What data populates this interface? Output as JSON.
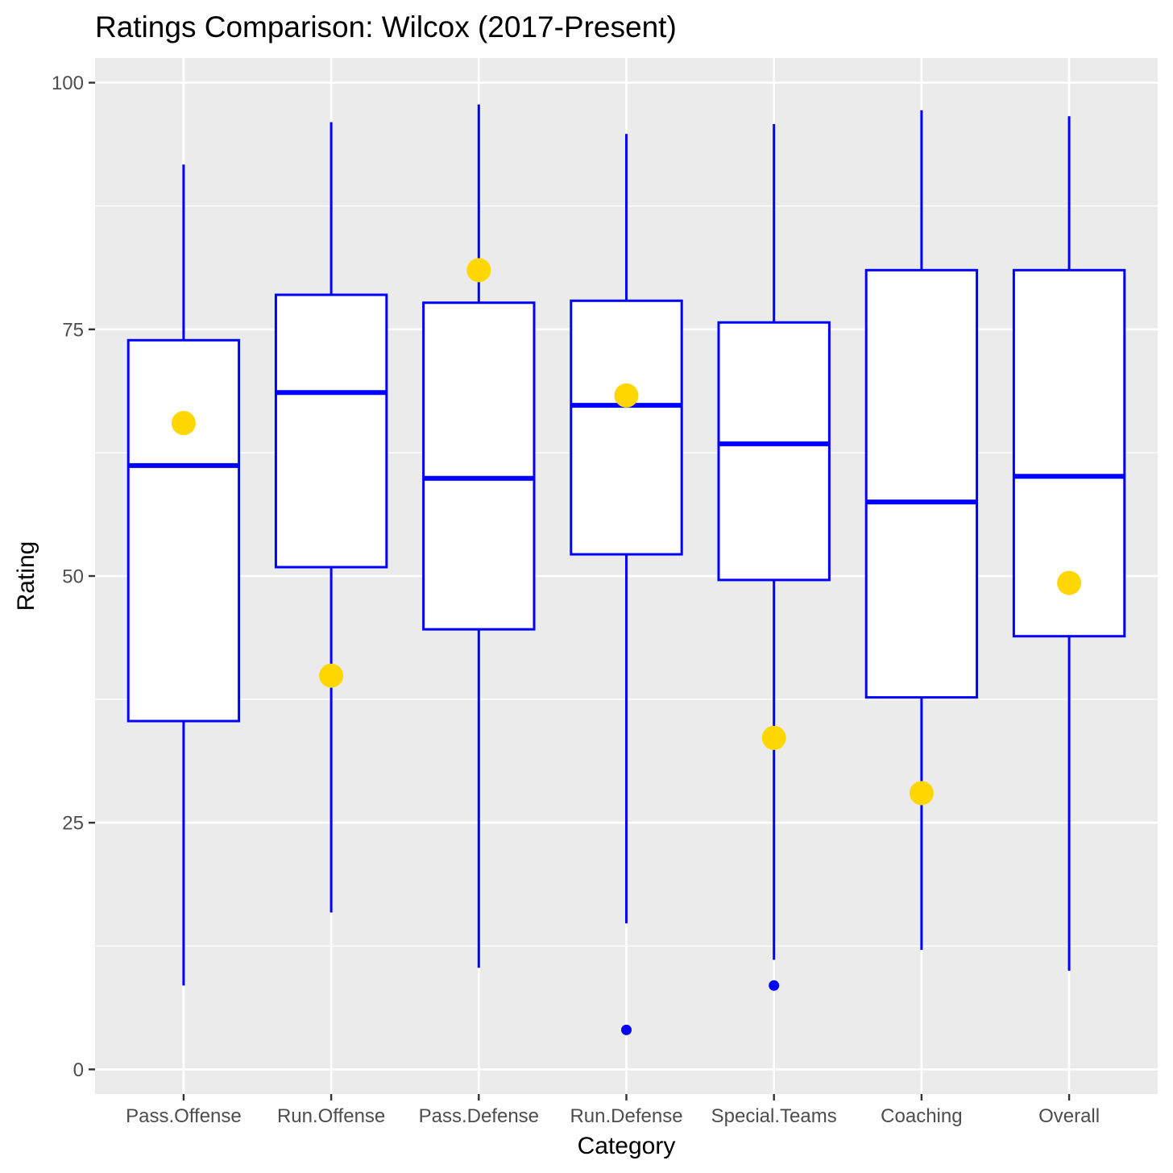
{
  "chart_data": {
    "type": "boxplot",
    "title": "Ratings Comparison: Wilcox (2017-Present)",
    "xlabel": "Category",
    "ylabel": "Rating",
    "ylim": [
      -2.5,
      102.5
    ],
    "yticks": [
      0,
      25,
      50,
      75,
      100
    ],
    "grid": true,
    "categories": [
      "Pass.Offense",
      "Run.Offense",
      "Pass.Defense",
      "Run.Defense",
      "Special.Teams",
      "Coaching",
      "Overall"
    ],
    "boxes": [
      {
        "category": "Pass.Offense",
        "whisker_low": 8.5,
        "q1": 35.3,
        "median": 61.2,
        "q3": 73.9,
        "whisker_high": 91.7,
        "outliers": []
      },
      {
        "category": "Run.Offense",
        "whisker_low": 15.9,
        "q1": 50.9,
        "median": 68.6,
        "q3": 78.5,
        "whisker_high": 96.0,
        "outliers": []
      },
      {
        "category": "Pass.Defense",
        "whisker_low": 10.3,
        "q1": 44.6,
        "median": 59.9,
        "q3": 77.7,
        "whisker_high": 97.8,
        "outliers": []
      },
      {
        "category": "Run.Defense",
        "whisker_low": 14.8,
        "q1": 52.2,
        "median": 67.3,
        "q3": 77.9,
        "whisker_high": 94.8,
        "outliers": [
          4.0
        ]
      },
      {
        "category": "Special.Teams",
        "whisker_low": 11.1,
        "q1": 49.6,
        "median": 63.4,
        "q3": 75.7,
        "whisker_high": 95.8,
        "outliers": [
          8.5
        ]
      },
      {
        "category": "Coaching",
        "whisker_low": 12.1,
        "q1": 37.7,
        "median": 57.5,
        "q3": 81.0,
        "whisker_high": 97.2,
        "outliers": []
      },
      {
        "category": "Overall",
        "whisker_low": 10.0,
        "q1": 43.9,
        "median": 60.1,
        "q3": 81.0,
        "whisker_high": 96.6,
        "outliers": []
      }
    ],
    "highlight_points": [
      65.5,
      39.9,
      81.0,
      68.3,
      33.6,
      28.0,
      49.3
    ],
    "colors": {
      "panel_background": "#ebebeb",
      "grid": "#ffffff",
      "box_outline": "#0000ff",
      "box_fill": "#ffffff",
      "highlight": "#ffd700",
      "tick_text": "#4d4d4d",
      "tick_mark": "#333333"
    }
  }
}
